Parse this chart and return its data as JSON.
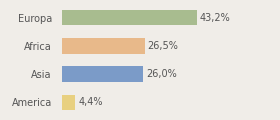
{
  "categories": [
    "Europa",
    "Africa",
    "Asia",
    "America"
  ],
  "values": [
    43.2,
    26.5,
    26.0,
    4.4
  ],
  "labels": [
    "43,2%",
    "26,5%",
    "26,0%",
    "4,4%"
  ],
  "bar_colors": [
    "#a8bc8f",
    "#e8b98a",
    "#7b9bc8",
    "#e8d080"
  ],
  "background_color": "#f0ede8",
  "xlim": [
    0,
    68
  ],
  "bar_height": 0.55,
  "label_fontsize": 7,
  "tick_fontsize": 7
}
